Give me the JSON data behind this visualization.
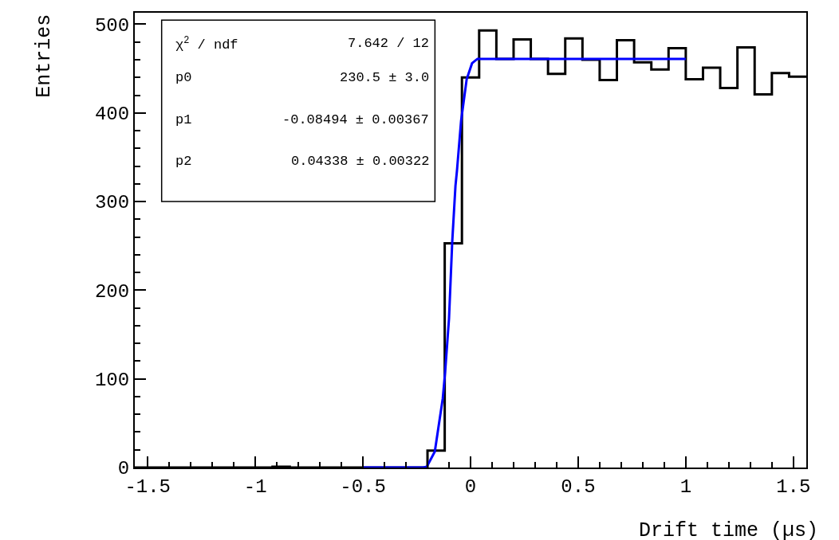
{
  "chart_data": {
    "type": "histogram",
    "xlabel": "Drift time (µs)",
    "ylabel": "Entries",
    "xlim": [
      -1.56,
      1.56
    ],
    "ylim": [
      0,
      513
    ],
    "xticks": [
      -1.5,
      -1,
      -0.5,
      0,
      0.5,
      1,
      1.5
    ],
    "yticks": [
      0,
      100,
      200,
      300,
      400,
      500
    ],
    "annotations": [
      "χ$^{2}$ / ndf",
      "7.642 / 12",
      "p0",
      "230.5 ± 3.0",
      "p1",
      "-0.08494 ± 0.00367",
      "p2",
      "0.04338 ± 0.00322"
    ],
    "series": [
      {
        "color": "#000000",
        "bins": [
          -1.56,
          -1.48,
          -1.4,
          -1.32,
          -1.24,
          -1.16,
          -1.08,
          -1.0,
          -0.92,
          -0.84,
          -0.76,
          -0.68,
          -0.6,
          -0.52,
          -0.44,
          -0.36,
          -0.28,
          -0.2,
          -0.12,
          -0.04,
          0.04,
          0.12,
          0.2,
          0.28,
          0.36,
          0.44,
          0.52,
          0.6,
          0.68,
          0.76,
          0.84,
          0.92,
          1.0,
          1.08,
          1.16,
          1.24,
          1.32,
          1.4,
          1.48,
          1.56
        ],
        "values": [
          0,
          0,
          0,
          0,
          0,
          0,
          0,
          0,
          1,
          0,
          0,
          0,
          0,
          0,
          0,
          0,
          0,
          19,
          253,
          440,
          493,
          461,
          483,
          461,
          444,
          484,
          460,
          437,
          482,
          457,
          449,
          473,
          438,
          451,
          428,
          474,
          421,
          445,
          441
        ]
      },
      {
        "type": "line",
        "color": "#0000ff",
        "x": [
          -0.5,
          -0.22,
          -0.203,
          -0.166,
          -0.129,
          -0.118,
          -0.1,
          -0.085,
          -0.07,
          -0.063,
          -0.044,
          -0.018,
          0.007,
          0.032,
          1.0
        ],
        "values": [
          0,
          0,
          1,
          18,
          78,
          108,
          168,
          255,
          318,
          335,
          391,
          438,
          456,
          461,
          461
        ]
      }
    ]
  }
}
